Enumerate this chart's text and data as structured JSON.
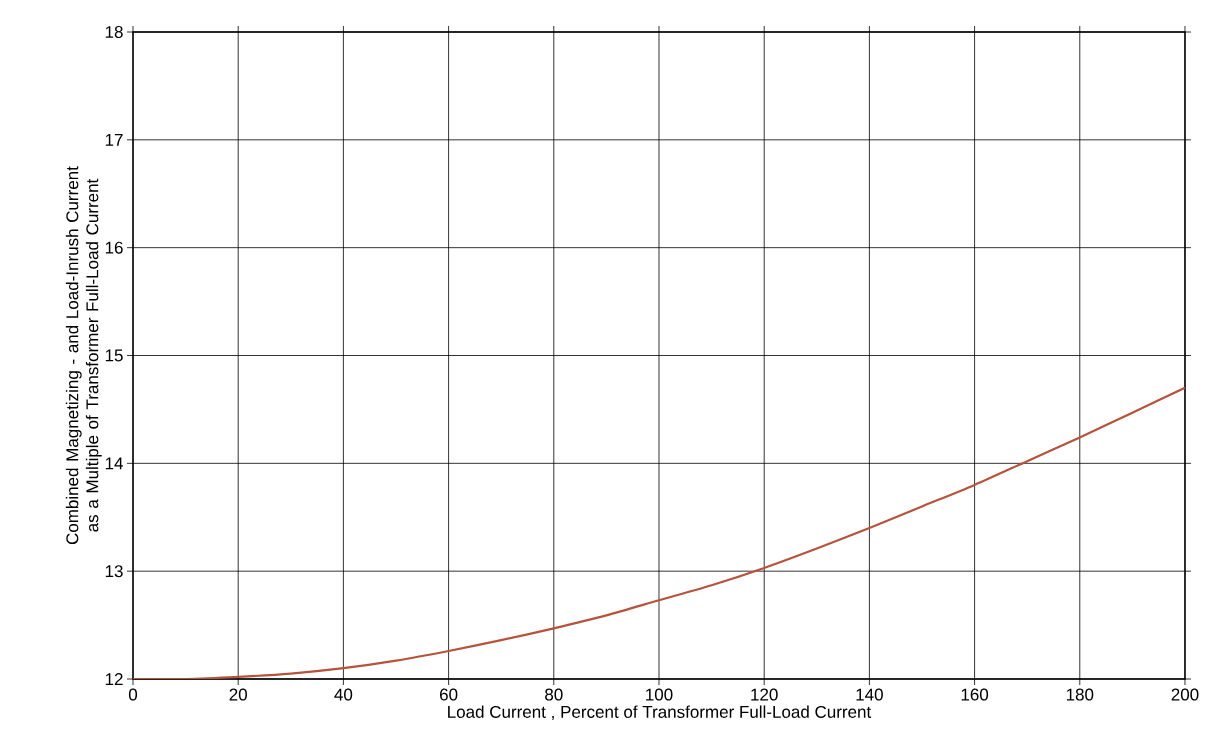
{
  "chart_data": {
    "type": "line",
    "xlabel": "Load Current , Percent of Transformer Full-Load Current",
    "ylabel": "Combined Magnetizing - and Load-Inrush Current as a Multiple of Transformer Full-Load Current",
    "x": [
      0,
      10,
      20,
      30,
      40,
      50,
      60,
      70,
      80,
      90,
      100,
      110,
      120,
      130,
      140,
      150,
      160,
      170,
      180,
      190,
      200
    ],
    "series": [
      {
        "color": "#b5533c",
        "values": [
          12.0,
          12.0,
          12.02,
          12.05,
          12.1,
          12.17,
          12.26,
          12.36,
          12.47,
          12.59,
          12.73,
          12.87,
          13.03,
          13.21,
          13.4,
          13.6,
          13.8,
          14.02,
          14.24,
          14.47,
          14.7
        ]
      }
    ],
    "xlim": [
      0,
      200
    ],
    "ylim": [
      12,
      18
    ],
    "xticks": [
      0,
      20,
      40,
      60,
      80,
      100,
      120,
      140,
      160,
      180,
      200
    ],
    "yticks": [
      12,
      13,
      14,
      15,
      16,
      17,
      18
    ],
    "grid": true,
    "marker": "none",
    "line_style": "solid"
  }
}
